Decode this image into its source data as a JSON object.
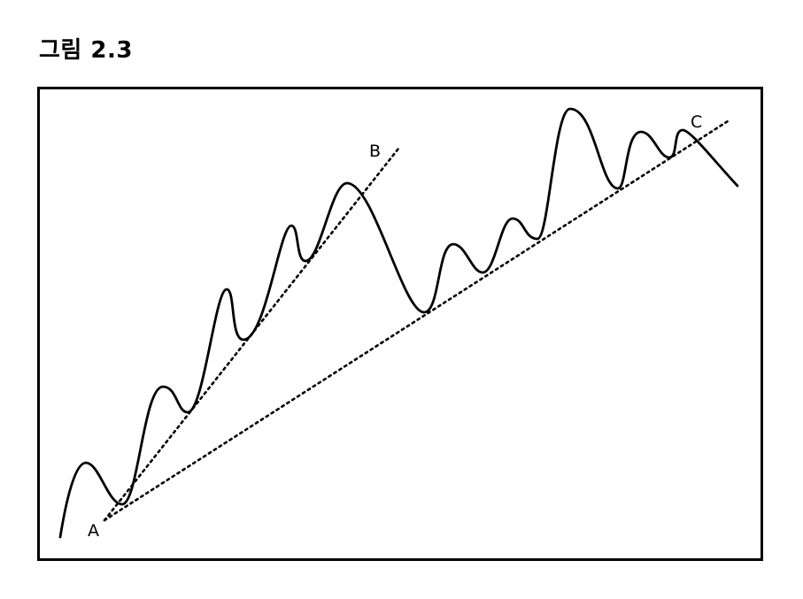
{
  "figure": {
    "title": "그림 2.3"
  },
  "labels": {
    "a": "A",
    "b": "B",
    "c": "C"
  },
  "colors": {
    "ink": "#000000",
    "background": "#ffffff"
  },
  "line_styles": {
    "price": "solid",
    "trendlines": "dotted"
  }
}
